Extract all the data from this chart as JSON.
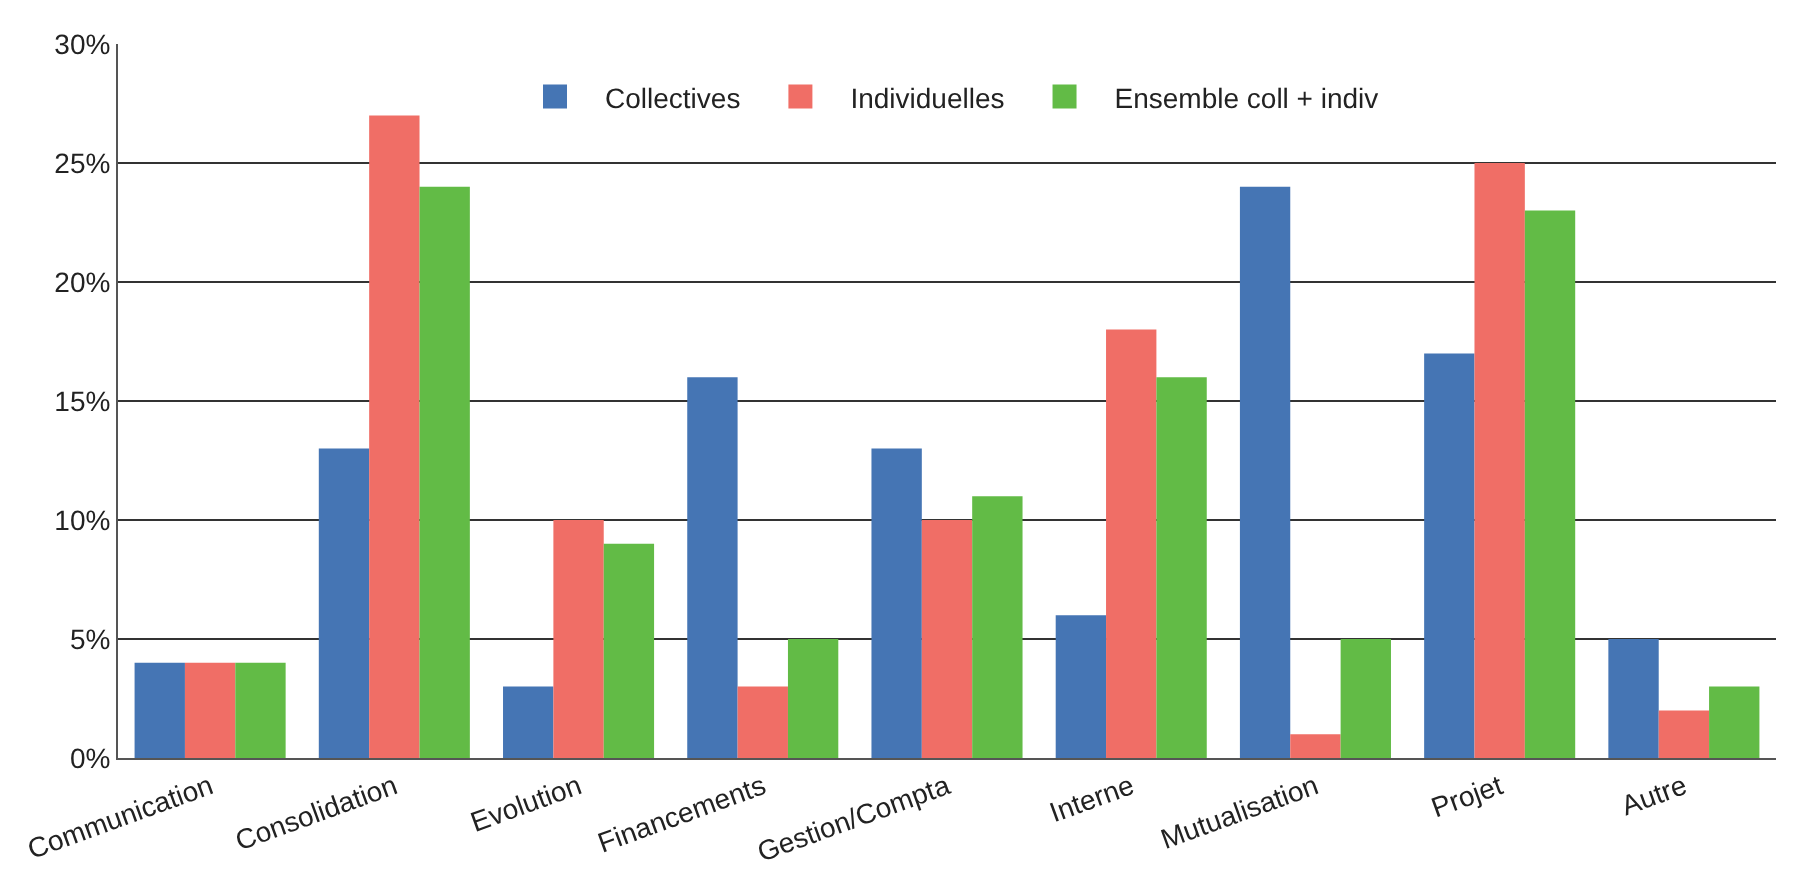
{
  "chart_data": {
    "type": "bar",
    "categories": [
      "Communication",
      "Consolidation",
      "Evolution",
      "Financements",
      "Gestion/Compta",
      "Interne",
      "Mutualisation",
      "Projet",
      "Autre"
    ],
    "series": [
      {
        "name": "Collectives",
        "color": "#4575b4",
        "values": [
          4,
          13,
          3,
          16,
          13,
          6,
          24,
          17,
          5
        ]
      },
      {
        "name": "Individuelles",
        "color": "#f06e66",
        "values": [
          4,
          27,
          10,
          3,
          10,
          18,
          1,
          25,
          2
        ]
      },
      {
        "name": "Ensemble coll + indiv",
        "color": "#62bb46",
        "values": [
          4,
          24,
          9,
          5,
          11,
          16,
          5,
          23,
          3
        ]
      }
    ],
    "ylim": [
      0,
      30
    ],
    "yticks": [
      {
        "value": 0,
        "label": "0%"
      },
      {
        "value": 5,
        "label": "5%"
      },
      {
        "value": 10,
        "label": "10%"
      },
      {
        "value": 15,
        "label": "15%"
      },
      {
        "value": 20,
        "label": "20%"
      },
      {
        "value": 25,
        "label": "25%"
      },
      {
        "value": 30,
        "label": "30%"
      }
    ],
    "grid": "y",
    "legend": "top"
  }
}
